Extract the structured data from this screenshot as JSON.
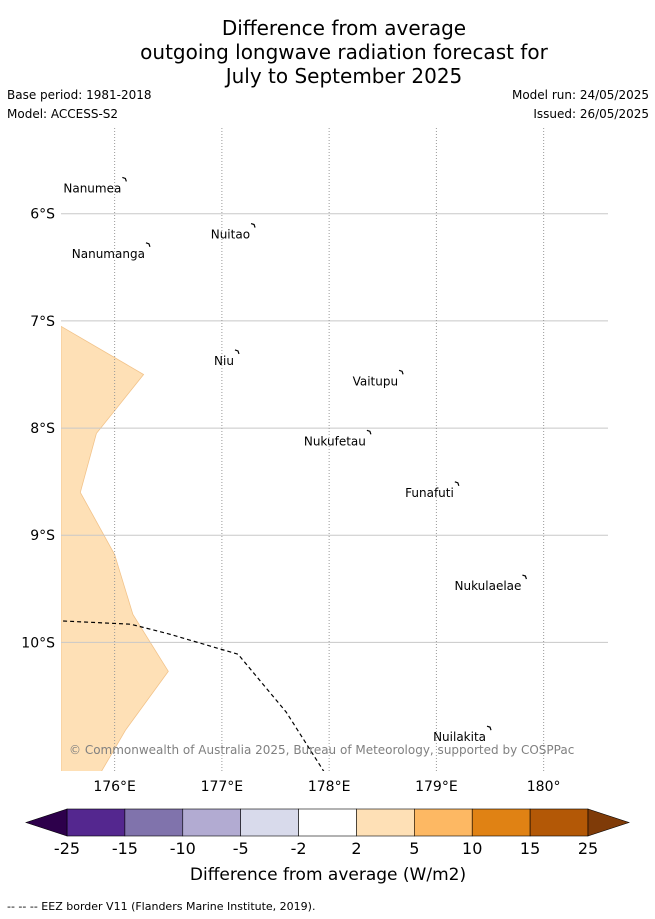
{
  "header": {
    "title_lines": [
      "Difference from average",
      "outgoing longwave radiation forecast for",
      "July to September 2025"
    ],
    "base_period": "Base period: 1981-2018",
    "model": "Model: ACCESS-S2",
    "model_run": "Model run: 24/05/2025",
    "issued": "Issued: 26/05/2025"
  },
  "map": {
    "lon_range": [
      175.5,
      180.5
    ],
    "lat_range": [
      -5.5,
      -11.5
    ],
    "lon_ticks": [
      "176°E",
      "177°E",
      "178°E",
      "179°E",
      "180°"
    ],
    "lat_ticks": [
      "6°S",
      "7°S",
      "8°S",
      "9°S",
      "10°S"
    ],
    "gridlines": true,
    "islands": [
      {
        "name": "Nanumea",
        "lon": 176.1,
        "lat": -5.68
      },
      {
        "name": "Nuitao",
        "lon": 177.3,
        "lat": -6.11
      },
      {
        "name": "Nanumanga",
        "lon": 176.32,
        "lat": -6.29
      },
      {
        "name": "Niu",
        "lon": 177.15,
        "lat": -7.29
      },
      {
        "name": "Vaitupu",
        "lon": 178.68,
        "lat": -7.48
      },
      {
        "name": "Nukufetau",
        "lon": 178.38,
        "lat": -8.04
      },
      {
        "name": "Funafuti",
        "lon": 179.2,
        "lat": -8.52
      },
      {
        "name": "Nukulaelae",
        "lon": 179.83,
        "lat": -9.39
      },
      {
        "name": "Nuilakita",
        "lon": 179.5,
        "lat": -10.8
      }
    ],
    "copyright": "© Commonwealth of Australia 2025, Bureau of Meteorology, supported by COSPPac",
    "anomaly_region": {
      "category": "2 to 5",
      "color": "#fee0b6",
      "edge_color": "#f2c38a",
      "outline": [
        [
          175.5,
          -7.05
        ],
        [
          176.27,
          -7.5
        ],
        [
          175.83,
          -8.05
        ],
        [
          175.68,
          -8.6
        ],
        [
          176.0,
          -9.18
        ],
        [
          176.17,
          -9.74
        ],
        [
          176.5,
          -10.27
        ],
        [
          176.1,
          -10.82
        ],
        [
          175.85,
          -11.25
        ],
        [
          175.5,
          -11.25
        ]
      ]
    },
    "eez_border": [
      [
        175.52,
        -9.8
      ],
      [
        176.15,
        -9.83
      ],
      [
        176.5,
        -9.92
      ],
      [
        177.15,
        -10.11
      ],
      [
        177.6,
        -10.65
      ],
      [
        177.98,
        -11.25
      ]
    ]
  },
  "colorbar": {
    "label": "Difference from average (W/m2)",
    "ticks": [
      "-25",
      "-15",
      "-10",
      "-5",
      "-2",
      "2",
      "5",
      "10",
      "15",
      "25"
    ],
    "colors": [
      "#54278f",
      "#8073ac",
      "#b2abd2",
      "#d8daeb",
      "#ffffff",
      "#fee0b6",
      "#fdb863",
      "#e08214",
      "#b35806"
    ],
    "extend_low_color": "#2d004b",
    "extend_high_color": "#7f3b08"
  },
  "footnote": "--  --  -- EEZ border V11 (Flanders Marine Institute, 2019)."
}
